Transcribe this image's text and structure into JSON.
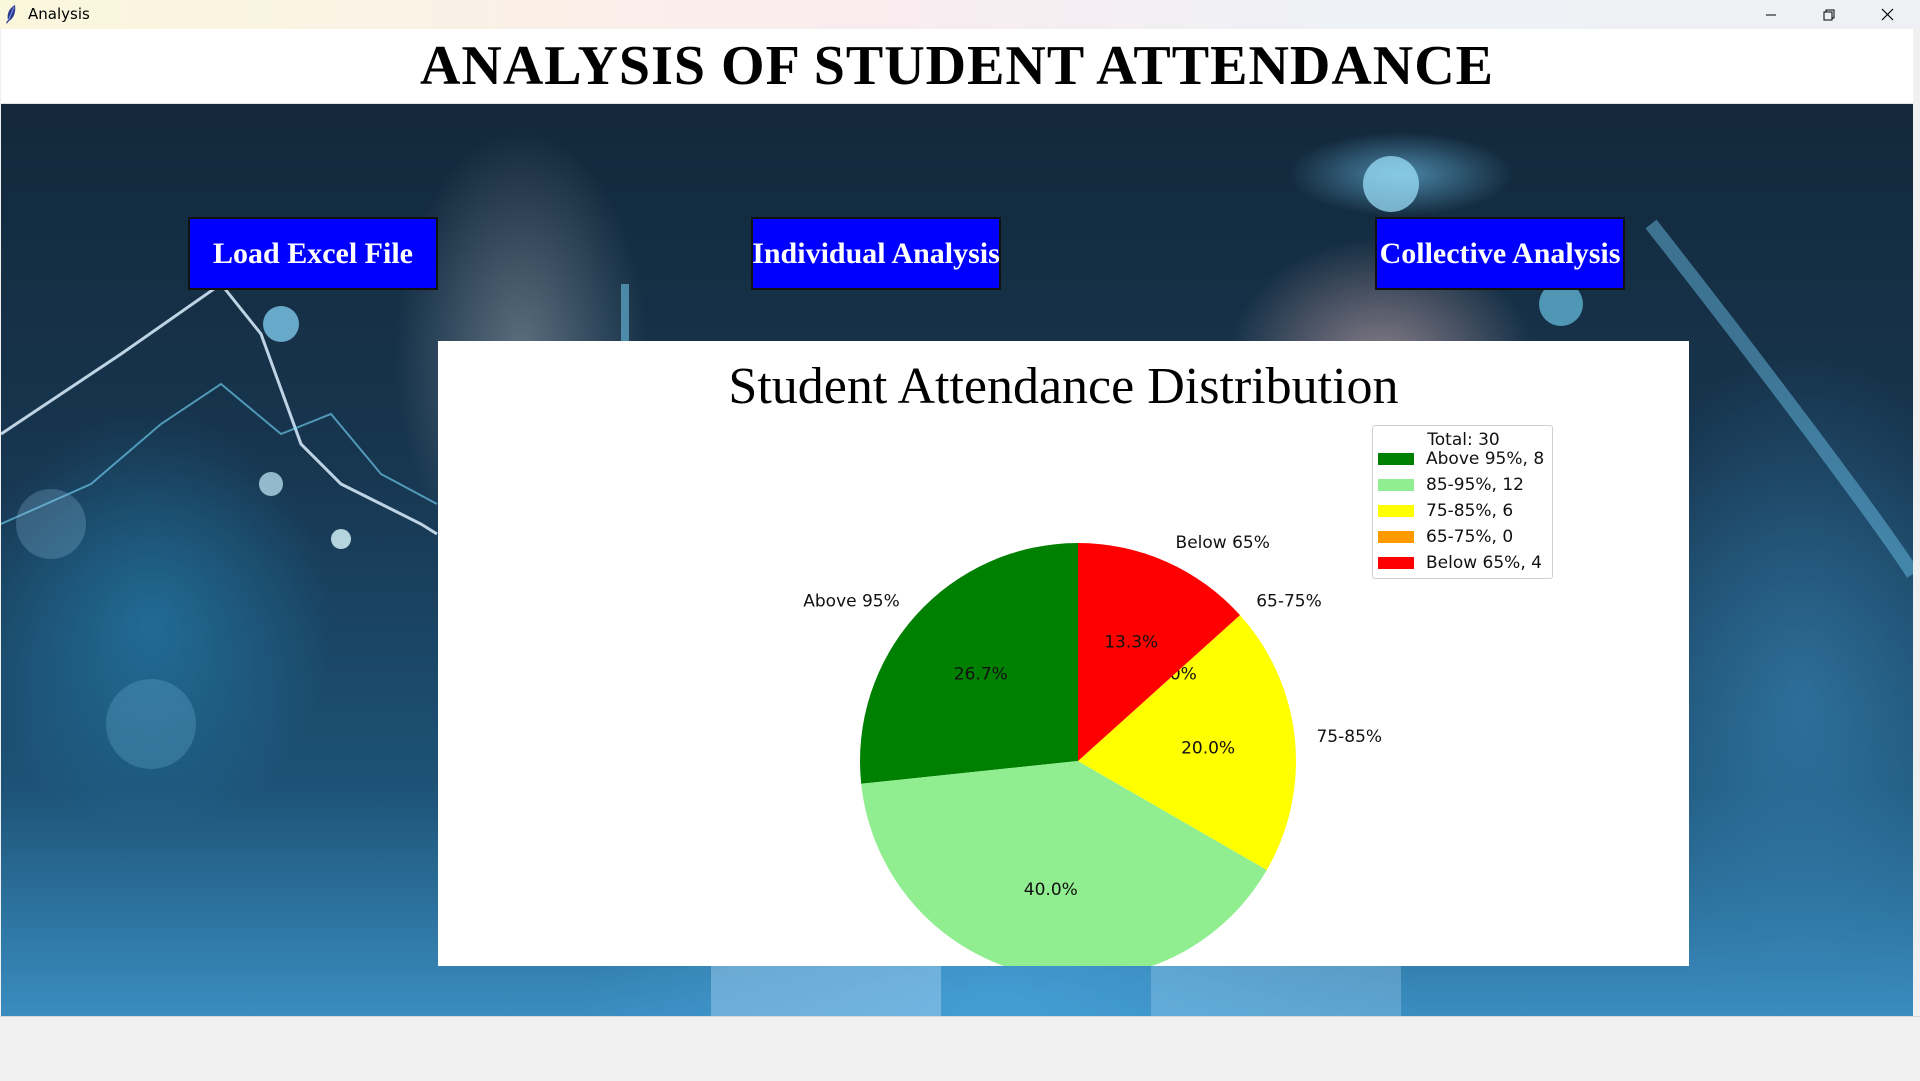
{
  "window": {
    "title": "Analysis"
  },
  "header": {
    "title": "ANALYSIS OF STUDENT ATTENDANCE"
  },
  "buttons": {
    "load": "Load Excel File",
    "individual": "Individual Analysis",
    "collective": "Collective Analysis"
  },
  "chart_data": {
    "type": "pie",
    "title": "Student Attendance Distribution",
    "categories": [
      "Above 95%",
      "85-95%",
      "75-85%",
      "65-75%",
      "Below 65%"
    ],
    "values": [
      8,
      12,
      6,
      0,
      4
    ],
    "percent_labels": [
      "26.7%",
      "40.0%",
      "20.0%",
      "0.0%",
      "13.3%"
    ],
    "colors": [
      "#008000",
      "#90ee90",
      "#ffff00",
      "#ff9900",
      "#ff0000"
    ],
    "start_angle_deg": 90,
    "direction": "counterclockwise",
    "legend": {
      "title": "Total: 30",
      "entries": [
        "Above 95%, 8",
        "85-95%, 12",
        "75-85%, 6",
        "65-75%, 0",
        "Below 65%, 4"
      ],
      "placement": "upper-right"
    }
  },
  "icons": {
    "app": "feather-icon",
    "minimize": "minimize-icon",
    "maximize": "restore-icon",
    "close": "close-icon"
  }
}
